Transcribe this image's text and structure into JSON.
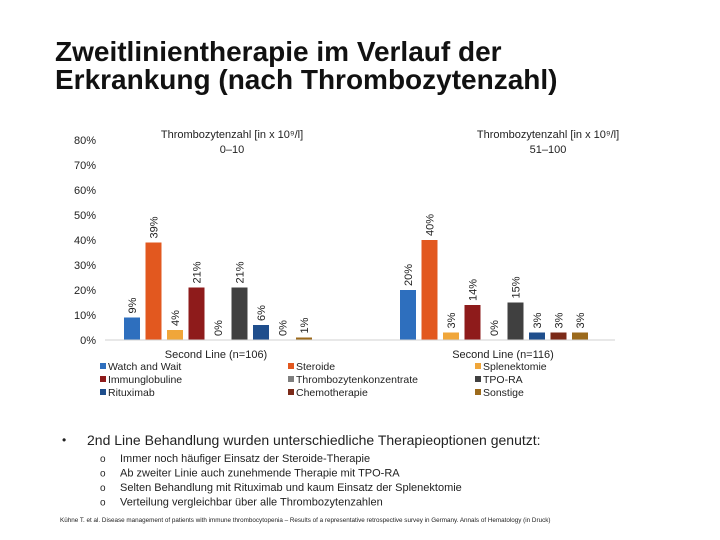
{
  "chart_data": {
    "type": "bar",
    "title": "Zweitlinientherapie im Verlauf der Erkrankung (nach Thrombozytenzahl)",
    "group_titles": [
      [
        "Thrombozytenzahl [in x 10⁹/l]",
        "0–10"
      ],
      [
        "Thrombozytenzahl [in x 10⁹/l]",
        "51–100"
      ]
    ],
    "categories": [
      "Second Line (n=106)",
      "Second Line (n=116)"
    ],
    "series": [
      {
        "name": "Watch and Wait",
        "color": "#2e6fbe",
        "values": [
          9,
          20
        ],
        "value_labels": [
          "9%",
          "20%"
        ]
      },
      {
        "name": "Steroide",
        "color": "#e2581f",
        "values": [
          39,
          40
        ],
        "value_labels": [
          "39%",
          "40%"
        ]
      },
      {
        "name": "Splenektomie",
        "color": "#f0a63a",
        "values": [
          4,
          3
        ],
        "value_labels": [
          "4%",
          "3%"
        ]
      },
      {
        "name": "Immunglobuline",
        "color": "#8e1b1b",
        "values": [
          21,
          14
        ],
        "value_labels": [
          "21%",
          "14%"
        ]
      },
      {
        "name": "Thrombozytenkonzentrate",
        "color": "#7f7f7f",
        "values": [
          0,
          0
        ],
        "value_labels": [
          "0%",
          "0%"
        ]
      },
      {
        "name": "TPO-RA",
        "color": "#404040",
        "values": [
          21,
          15
        ],
        "value_labels": [
          "21%",
          "15%"
        ]
      },
      {
        "name": "Rituximab",
        "color": "#1f4e8c",
        "values": [
          6,
          3
        ],
        "value_labels": [
          "6%",
          "3%"
        ]
      },
      {
        "name": "Chemotherapie",
        "color": "#7b2a18",
        "values": [
          0,
          3
        ],
        "value_labels": [
          "0%",
          "3%"
        ]
      },
      {
        "name": "Sonstige",
        "color": "#9c6a1c",
        "values": [
          1,
          3
        ],
        "value_labels": [
          "1%",
          "3%"
        ]
      }
    ],
    "ylim": [
      0,
      80
    ],
    "yticks": [
      {
        "value": 0,
        "label": "0%"
      },
      {
        "value": 10,
        "label": "10%"
      },
      {
        "value": 20,
        "label": "20%"
      },
      {
        "value": 30,
        "label": "30%"
      },
      {
        "value": 40,
        "label": "40%"
      },
      {
        "value": 50,
        "label": "50%"
      },
      {
        "value": 60,
        "label": "60%"
      },
      {
        "value": 70,
        "label": "70%"
      },
      {
        "value": 80,
        "label": "80%"
      }
    ],
    "grid": false
  },
  "notes": {
    "bullet": "2nd Line Behandlung wurden unterschiedliche Therapieoptionen genutzt:",
    "sub_bullets": [
      "Immer noch häufiger Einsatz der Steroide-Therapie",
      "Ab zweiter Linie auch zunehmende Therapie mit TPO-RA",
      "Selten Behandlung mit Rituximab und kaum Einsatz der Splenektomie",
      "Verteilung vergleichbar über alle Thrombozytenzahlen"
    ]
  },
  "citation": "Kühne T. et al. Disease management of patients with immune thrombocytopenia – Results of a representative retrospective survey in Germany. Annals of Hematology (in Druck)"
}
